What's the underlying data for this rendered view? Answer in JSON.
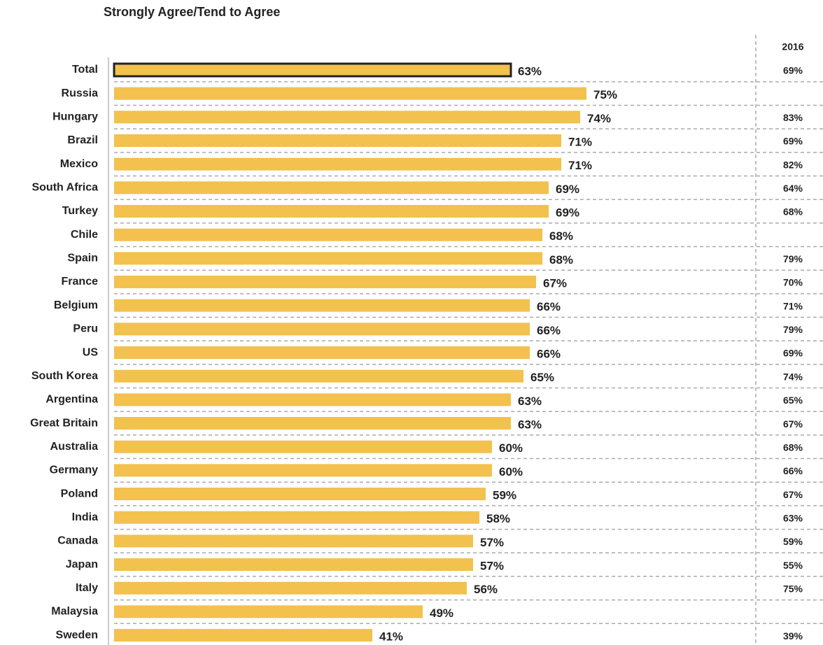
{
  "chart_data": {
    "type": "hbar",
    "subtitle": "Strongly Agree/Tend to Agree",
    "categories": [
      "Total",
      "Russia",
      "Hungary",
      "Brazil",
      "Mexico",
      "South Africa",
      "Turkey",
      "Chile",
      "Spain",
      "France",
      "Belgium",
      "Peru",
      "US",
      "South Korea",
      "Argentina",
      "Great Britain",
      "Australia",
      "Germany",
      "Poland",
      "India",
      "Canada",
      "Japan",
      "Italy",
      "Malaysia",
      "Sweden"
    ],
    "values": [
      63,
      75,
      74,
      71,
      71,
      69,
      69,
      68,
      68,
      67,
      66,
      66,
      66,
      65,
      63,
      63,
      60,
      60,
      59,
      58,
      57,
      57,
      56,
      49,
      41
    ],
    "value_labels": [
      "63%",
      "75%",
      "74%",
      "71%",
      "71%",
      "69%",
      "69%",
      "68%",
      "68%",
      "67%",
      "66%",
      "66%",
      "66%",
      "65%",
      "63%",
      "63%",
      "60%",
      "60%",
      "59%",
      "58%",
      "57%",
      "57%",
      "56%",
      "49%",
      "41%"
    ],
    "color": "#f2c14e",
    "highlight_category": "Total",
    "highlight_outline": "#222222",
    "xlim": [
      0,
      100
    ],
    "comparison": {
      "label": "2016",
      "values": [
        69,
        null,
        83,
        69,
        82,
        64,
        68,
        null,
        79,
        70,
        71,
        79,
        69,
        74,
        65,
        67,
        68,
        66,
        67,
        63,
        59,
        55,
        75,
        null,
        39
      ],
      "value_labels": [
        "69%",
        null,
        "83%",
        "69%",
        "82%",
        "64%",
        "68%",
        null,
        "79%",
        "70%",
        "71%",
        "79%",
        "69%",
        "74%",
        "65%",
        "67%",
        "68%",
        "66%",
        "67%",
        "63%",
        "59%",
        "55%",
        "75%",
        null,
        "39%"
      ]
    }
  }
}
